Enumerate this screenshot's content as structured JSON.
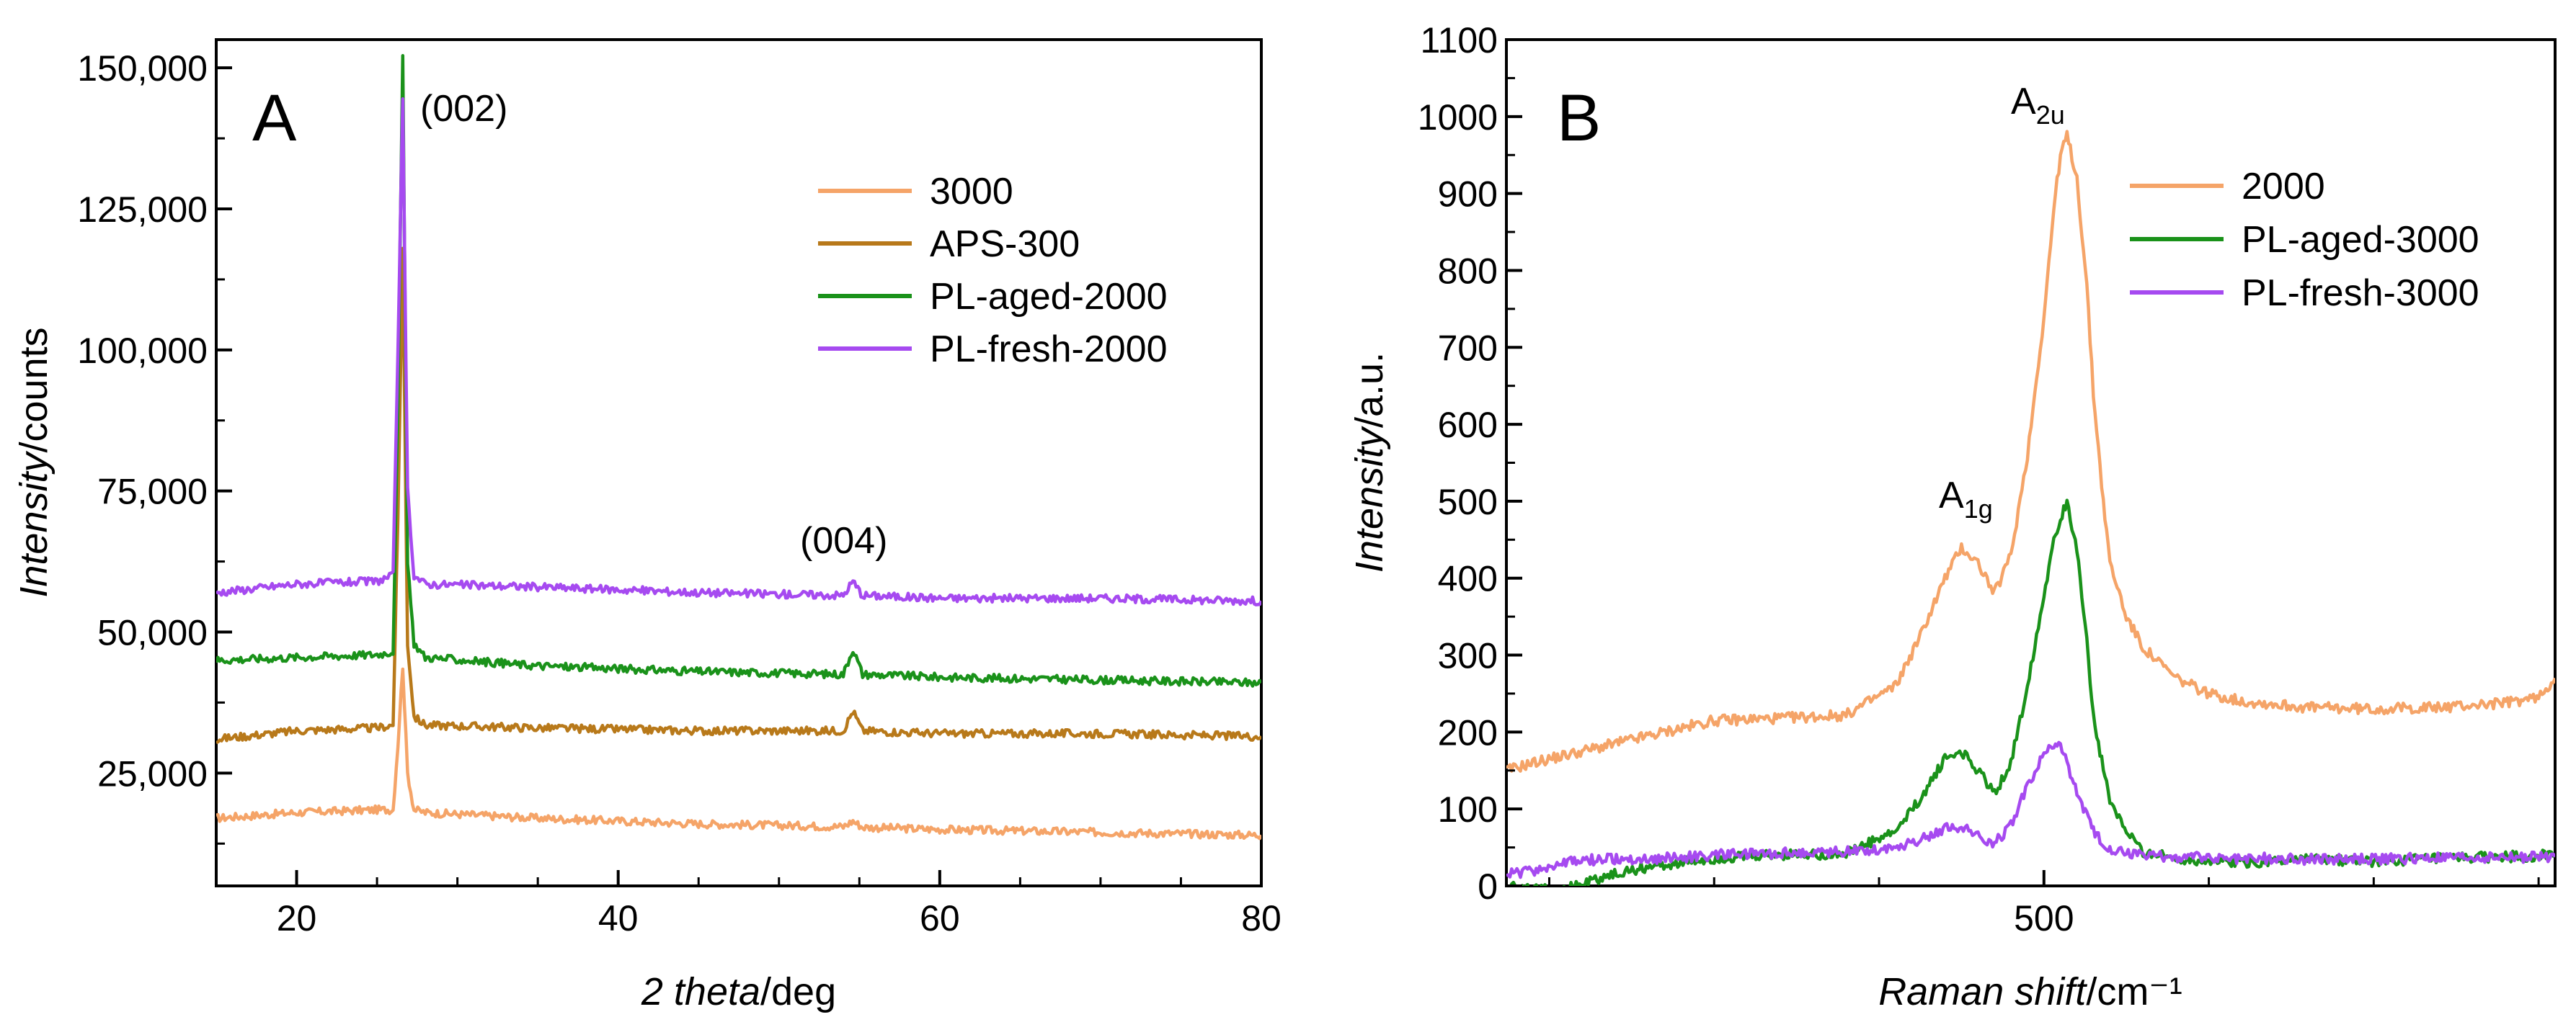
{
  "chart_data": [
    {
      "type": "line",
      "panel_label": "A",
      "xlabel_italic": "2 theta",
      "xlabel_unit": "/deg",
      "ylabel_italic": "Intensity",
      "ylabel_unit": "/counts",
      "xlim": [
        15,
        80
      ],
      "ylim": [
        5000,
        155000
      ],
      "xticks": [
        20,
        40,
        60,
        80
      ],
      "xtick_labels": [
        "20",
        "40",
        "60",
        "80"
      ],
      "yticks": [
        25000,
        50000,
        75000,
        100000,
        125000,
        150000
      ],
      "ytick_labels": [
        "25,000",
        "50,000",
        "75,000",
        "100,000",
        "125,000",
        "150,000"
      ],
      "annotations": [
        {
          "text": "(002)",
          "x": 30,
          "y": 148000
        },
        {
          "text": "(004)",
          "x": 54,
          "y": 67000
        }
      ],
      "legend_position": "top-right",
      "series": [
        {
          "name": "3000",
          "color": "#f5a468",
          "x": [
            15,
            20,
            25,
            26,
            26.3,
            26.6,
            26.9,
            27.3,
            28,
            35,
            45,
            54,
            54.6,
            55.2,
            60,
            70,
            80
          ],
          "y": [
            17000,
            18000,
            18500,
            18500,
            30000,
            44000,
            25000,
            18500,
            18000,
            17000,
            16000,
            15500,
            16500,
            15400,
            15000,
            14500,
            14000
          ]
        },
        {
          "name": "APS-300",
          "color": "#b8791a",
          "x": [
            15,
            20,
            25,
            26,
            26.3,
            26.6,
            26.9,
            27.3,
            28,
            35,
            45,
            54,
            54.6,
            55.2,
            60,
            70,
            80
          ],
          "y": [
            31000,
            32500,
            33000,
            33500,
            70000,
            118000,
            48000,
            35000,
            33500,
            33000,
            32500,
            32500,
            36000,
            32500,
            32000,
            32000,
            31500
          ]
        },
        {
          "name": "PL-aged-2000",
          "color": "#1a921a",
          "x": [
            15,
            20,
            25,
            26,
            26.3,
            26.6,
            26.9,
            27.3,
            28,
            35,
            45,
            54,
            54.6,
            55.2,
            60,
            70,
            80
          ],
          "y": [
            45000,
            45500,
            46000,
            46500,
            90000,
            151500,
            62000,
            48000,
            45500,
            44000,
            43000,
            42500,
            47000,
            42500,
            42000,
            41500,
            41000
          ]
        },
        {
          "name": "PL-fresh-2000",
          "color": "#a64af0",
          "x": [
            15,
            20,
            25,
            26,
            26.3,
            26.6,
            26.9,
            27.3,
            28,
            35,
            45,
            54,
            54.6,
            55.2,
            60,
            70,
            80
          ],
          "y": [
            57000,
            58500,
            59000,
            60000,
            100000,
            144000,
            75000,
            60000,
            58500,
            58000,
            57000,
            56500,
            59000,
            56500,
            56000,
            56000,
            55500
          ]
        }
      ]
    },
    {
      "type": "line",
      "panel_label": "B",
      "xlabel_italic": "Raman shift",
      "xlabel_unit": "/cm⁻¹",
      "ylabel_italic": "Intensity",
      "ylabel_unit": "/a.u.",
      "xlim": [
        337,
        655
      ],
      "ylim": [
        0,
        1100
      ],
      "xticks": [
        500
      ],
      "xtick_labels": [
        "500"
      ],
      "yticks": [
        0,
        100,
        200,
        300,
        400,
        500,
        600,
        700,
        800,
        900,
        1000,
        1100
      ],
      "ytick_labels": [
        "0",
        "100",
        "200",
        "300",
        "400",
        "500",
        "600",
        "700",
        "800",
        "900",
        "1000",
        "1100"
      ],
      "annotations": [
        {
          "base": "A",
          "sub": "1g",
          "x": 470,
          "y": 490
        },
        {
          "base": "A",
          "sub": "2u",
          "x": 508,
          "y": 1005
        }
      ],
      "legend_position": "top-right",
      "series": [
        {
          "name": "2000",
          "color": "#f5a468",
          "x": [
            337,
            345,
            360,
            380,
            400,
            420,
            440,
            455,
            462,
            470,
            475,
            480,
            485,
            490,
            495,
            500,
            503,
            505,
            507,
            510,
            513,
            515,
            518,
            520,
            525,
            530,
            540,
            550,
            560,
            580,
            600,
            620,
            640,
            650,
            655
          ],
          "y": [
            150,
            160,
            175,
            195,
            215,
            218,
            222,
            260,
            320,
            400,
            440,
            420,
            380,
            430,
            560,
            740,
            880,
            950,
            975,
            920,
            780,
            640,
            500,
            420,
            350,
            310,
            270,
            250,
            240,
            232,
            230,
            232,
            238,
            245,
            270
          ]
        },
        {
          "name": "PL-aged-3000",
          "color": "#1a921a",
          "x": [
            337,
            345,
            355,
            365,
            380,
            400,
            420,
            440,
            455,
            462,
            470,
            475,
            480,
            485,
            490,
            495,
            500,
            503,
            505,
            507,
            510,
            513,
            515,
            518,
            520,
            525,
            530,
            540,
            560,
            580,
            600,
            620,
            640,
            655
          ],
          "y": [
            0,
            -5,
            -3,
            10,
            25,
            35,
            40,
            42,
            70,
            110,
            165,
            175,
            150,
            120,
            160,
            260,
            380,
            450,
            480,
            495,
            440,
            320,
            220,
            150,
            110,
            70,
            45,
            35,
            30,
            35,
            32,
            35,
            38,
            40
          ]
        },
        {
          "name": "PL-fresh-3000",
          "color": "#a64af0",
          "x": [
            337,
            345,
            355,
            365,
            380,
            400,
            420,
            440,
            455,
            462,
            470,
            475,
            480,
            485,
            490,
            495,
            500,
            503,
            505,
            507,
            510,
            513,
            515,
            518,
            520,
            525,
            530,
            540,
            560,
            580,
            600,
            620,
            640,
            655
          ],
          "y": [
            15,
            20,
            30,
            35,
            35,
            40,
            42,
            45,
            50,
            60,
            75,
            78,
            65,
            55,
            80,
            130,
            170,
            185,
            180,
            160,
            120,
            90,
            70,
            55,
            48,
            42,
            40,
            38,
            36,
            35,
            35,
            36,
            37,
            38
          ]
        }
      ]
    }
  ]
}
